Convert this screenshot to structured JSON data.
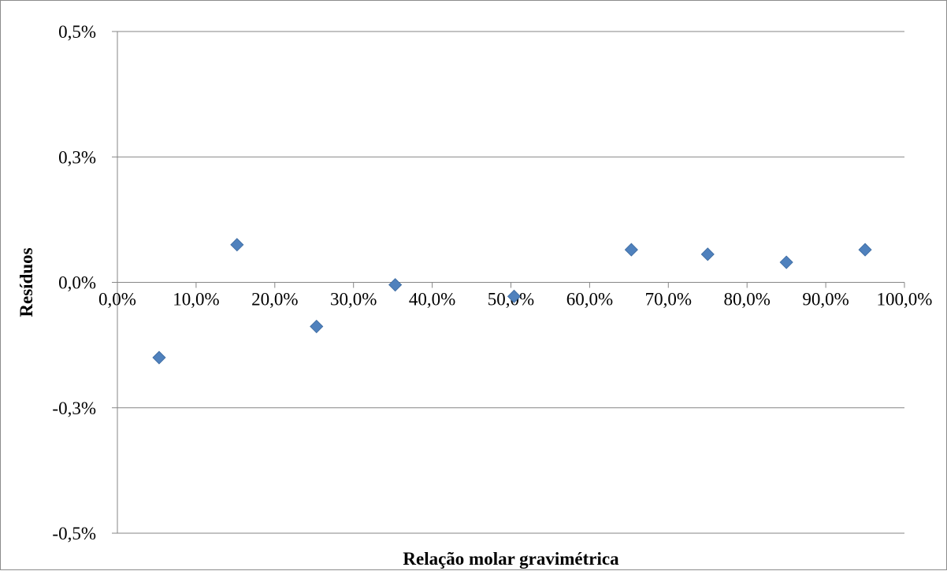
{
  "chart_data": {
    "type": "scatter",
    "title": "",
    "xlabel": "Relação molar gravimétrica",
    "ylabel": "Resíduos",
    "xlim": [
      0,
      1.0
    ],
    "ylim": [
      -0.005,
      0.005
    ],
    "x_ticks": [
      0,
      0.1,
      0.2,
      0.3,
      0.4,
      0.5,
      0.6,
      0.7,
      0.8,
      0.9,
      1.0
    ],
    "x_tick_labels": [
      "0,0%",
      "10,0%",
      "20,0%",
      "30,0%",
      "40,0%",
      "50,0%",
      "60,0%",
      "70,0%",
      "80,0%",
      "90,0%",
      "100,0%"
    ],
    "y_ticks": [
      0.005,
      0.0025,
      0,
      -0.0025,
      -0.005
    ],
    "y_tick_labels": [
      "0,5%",
      "0,3%",
      "0,0%",
      "-0,3%",
      "-0,5%"
    ],
    "grid": "horizontal",
    "legend": "none",
    "marker": "diamond",
    "marker_color": "#4f81bd",
    "points": [
      {
        "x": 0.053,
        "y": -0.0015
      },
      {
        "x": 0.152,
        "y": 0.00075
      },
      {
        "x": 0.253,
        "y": -0.00088
      },
      {
        "x": 0.353,
        "y": -5e-05
      },
      {
        "x": 0.504,
        "y": -0.00028
      },
      {
        "x": 0.653,
        "y": 0.00065
      },
      {
        "x": 0.75,
        "y": 0.00056
      },
      {
        "x": 0.85,
        "y": 0.0004
      },
      {
        "x": 0.95,
        "y": 0.00065
      }
    ]
  }
}
